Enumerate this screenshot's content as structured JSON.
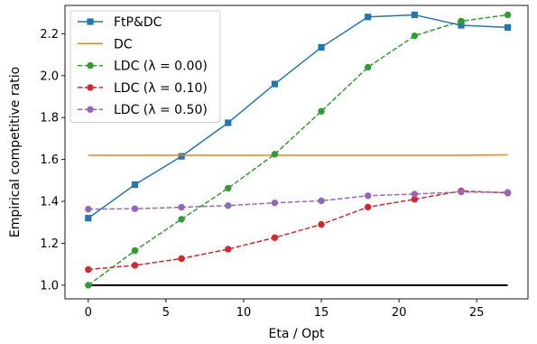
{
  "chart_data": {
    "type": "line",
    "xlabel": "Eta / Opt",
    "ylabel": "Empirical competitive ratio",
    "xlim": [
      -1.5,
      28.3
    ],
    "ylim": [
      0.935,
      2.335
    ],
    "xticks": [
      0,
      5,
      10,
      15,
      20,
      25
    ],
    "yticks": [
      1.0,
      1.2,
      1.4,
      1.6,
      1.8,
      2.0,
      2.2
    ],
    "grid": false,
    "legend_position": "top-left",
    "x": [
      0,
      3,
      6,
      9,
      12,
      15,
      18,
      21,
      24,
      27
    ],
    "reference_line": {
      "y": 1.0,
      "color": "#000000"
    },
    "series": [
      {
        "name": "FtP&DC",
        "color": "#1f77b4",
        "marker": "square",
        "dash": "solid",
        "values": [
          1.32,
          1.48,
          1.615,
          1.775,
          1.96,
          2.135,
          2.28,
          2.29,
          2.24,
          2.23
        ]
      },
      {
        "name": "DC",
        "color": "#ff7f0e",
        "marker": "none",
        "dash": "solid",
        "values": [
          1.62,
          1.62,
          1.62,
          1.62,
          1.62,
          1.62,
          1.62,
          1.62,
          1.62,
          1.622
        ]
      },
      {
        "name": "LDC (λ = 0.00)",
        "color": "#2ca02c",
        "marker": "circle",
        "dash": "dashed",
        "values": [
          1.0,
          1.165,
          1.315,
          1.463,
          1.625,
          1.83,
          2.04,
          2.19,
          2.26,
          2.29
        ]
      },
      {
        "name": "LDC (λ = 0.10)",
        "color": "#d62728",
        "marker": "circle",
        "dash": "dashed",
        "values": [
          1.075,
          1.095,
          1.127,
          1.172,
          1.227,
          1.29,
          1.373,
          1.41,
          1.45,
          1.44
        ]
      },
      {
        "name": "LDC (λ = 0.50)",
        "color": "#9467bd",
        "marker": "circle",
        "dash": "dashed",
        "values": [
          1.363,
          1.365,
          1.372,
          1.38,
          1.393,
          1.403,
          1.427,
          1.435,
          1.445,
          1.443
        ]
      }
    ]
  }
}
